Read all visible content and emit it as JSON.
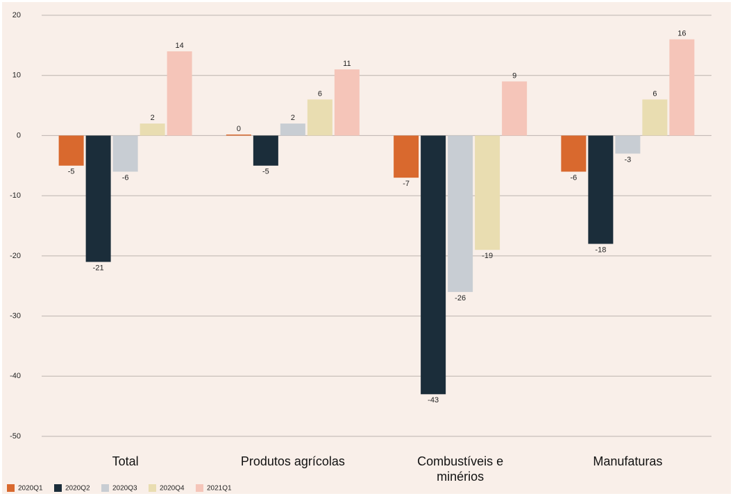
{
  "chart_data": {
    "type": "bar",
    "categories": [
      "Total",
      "Produtos agrícolas",
      "Combustíveis e minérios",
      "Manufaturas"
    ],
    "series": [
      {
        "name": "2020Q1",
        "color": "#d9692e",
        "values": [
          -5,
          0,
          -7,
          -6
        ]
      },
      {
        "name": "2020Q2",
        "color": "#1b2d3a",
        "values": [
          -21,
          -5,
          -43,
          -18
        ]
      },
      {
        "name": "2020Q3",
        "color": "#c8cdd3",
        "values": [
          -6,
          2,
          -26,
          -3
        ]
      },
      {
        "name": "2020Q4",
        "color": "#e9ddb1",
        "values": [
          2,
          6,
          -19,
          6
        ]
      },
      {
        "name": "2021Q1",
        "color": "#f5c5b9",
        "values": [
          14,
          11,
          9,
          16
        ]
      }
    ],
    "ylim": [
      -50,
      20
    ],
    "yticks": [
      -50,
      -40,
      -30,
      -20,
      -10,
      0,
      10,
      20
    ],
    "grid": true,
    "legend": "bottom-left"
  }
}
